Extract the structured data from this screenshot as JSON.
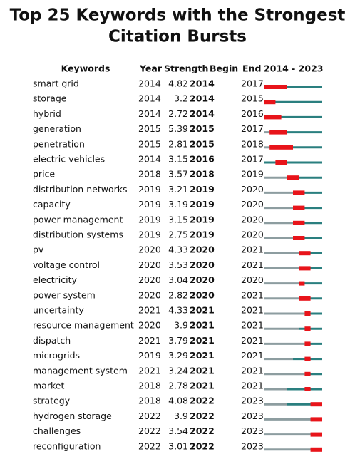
{
  "title": [
    "Top 25 Keywords with the Strongest",
    "Citation Bursts"
  ],
  "headers": {
    "keyword": "Keywords",
    "year": "Year",
    "strength": "Strength",
    "begin": "Begin",
    "end": "End",
    "range": {
      "label": "2014 - 2023",
      "from": 2014,
      "to": 2023
    }
  },
  "rows": [
    {
      "keyword": "smart grid",
      "year": 2014,
      "strength": 4.82,
      "begin": 2014,
      "end": 2017
    },
    {
      "keyword": "storage",
      "year": 2014,
      "strength": 3.2,
      "begin": 2014,
      "end": 2015
    },
    {
      "keyword": "hybrid",
      "year": 2014,
      "strength": 2.72,
      "begin": 2014,
      "end": 2016
    },
    {
      "keyword": "generation",
      "year": 2015,
      "strength": 5.39,
      "begin": 2015,
      "end": 2017
    },
    {
      "keyword": "penetration",
      "year": 2015,
      "strength": 2.81,
      "begin": 2015,
      "end": 2018
    },
    {
      "keyword": "electric vehicles",
      "year": 2014,
      "strength": 3.15,
      "begin": 2016,
      "end": 2017
    },
    {
      "keyword": "price",
      "year": 2018,
      "strength": 3.57,
      "begin": 2018,
      "end": 2019
    },
    {
      "keyword": "distribution networks",
      "year": 2019,
      "strength": 3.21,
      "begin": 2019,
      "end": 2020
    },
    {
      "keyword": "capacity",
      "year": 2019,
      "strength": 3.19,
      "begin": 2019,
      "end": 2020
    },
    {
      "keyword": "power management",
      "year": 2019,
      "strength": 3.15,
      "begin": 2019,
      "end": 2020
    },
    {
      "keyword": "distribution systems",
      "year": 2019,
      "strength": 2.75,
      "begin": 2019,
      "end": 2020
    },
    {
      "keyword": "pv",
      "year": 2020,
      "strength": 4.33,
      "begin": 2020,
      "end": 2021
    },
    {
      "keyword": "voltage control",
      "year": 2020,
      "strength": 3.53,
      "begin": 2020,
      "end": 2021
    },
    {
      "keyword": "electricity",
      "year": 2020,
      "strength": 3.04,
      "begin": 2020,
      "end": 2020
    },
    {
      "keyword": "power system",
      "year": 2020,
      "strength": 2.82,
      "begin": 2020,
      "end": 2021
    },
    {
      "keyword": "uncertainty",
      "year": 2021,
      "strength": 4.33,
      "begin": 2021,
      "end": 2021
    },
    {
      "keyword": "resource management",
      "year": 2020,
      "strength": 3.9,
      "begin": 2021,
      "end": 2021
    },
    {
      "keyword": "dispatch",
      "year": 2021,
      "strength": 3.79,
      "begin": 2021,
      "end": 2021
    },
    {
      "keyword": "microgrids",
      "year": 2019,
      "strength": 3.29,
      "begin": 2021,
      "end": 2021
    },
    {
      "keyword": "management system",
      "year": 2021,
      "strength": 3.24,
      "begin": 2021,
      "end": 2021
    },
    {
      "keyword": "market",
      "year": 2018,
      "strength": 2.78,
      "begin": 2021,
      "end": 2021
    },
    {
      "keyword": "strategy",
      "year": 2018,
      "strength": 4.08,
      "begin": 2022,
      "end": 2023
    },
    {
      "keyword": "hydrogen storage",
      "year": 2022,
      "strength": 3.9,
      "begin": 2022,
      "end": 2023
    },
    {
      "keyword": "challenges",
      "year": 2022,
      "strength": 3.54,
      "begin": 2022,
      "end": 2023
    },
    {
      "keyword": "reconfiguration",
      "year": 2022,
      "strength": 3.01,
      "begin": 2022,
      "end": 2023
    }
  ]
}
